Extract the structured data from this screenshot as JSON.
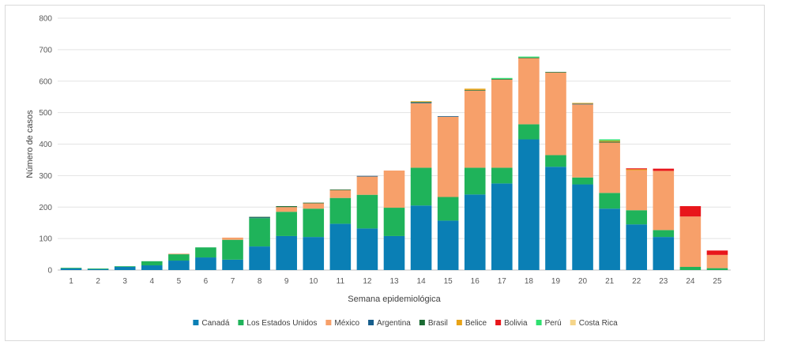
{
  "chart_data": {
    "type": "bar",
    "stacked": true,
    "xlabel": "Semana epidemiológica",
    "ylabel": "Número de casos",
    "ylim": [
      0,
      800
    ],
    "yticks": [
      0,
      100,
      200,
      300,
      400,
      500,
      600,
      700,
      800
    ],
    "grid": true,
    "legend_position": "bottom",
    "categories": [
      "1",
      "2",
      "3",
      "4",
      "5",
      "6",
      "7",
      "8",
      "9",
      "10",
      "11",
      "12",
      "13",
      "14",
      "15",
      "16",
      "17",
      "18",
      "19",
      "20",
      "21",
      "22",
      "23",
      "24",
      "25"
    ],
    "series": [
      {
        "name": "Canadá",
        "color": "#0a7fb5",
        "values": [
          5,
          3,
          10,
          15,
          30,
          40,
          33,
          75,
          108,
          105,
          147,
          132,
          108,
          205,
          157,
          240,
          275,
          415,
          328,
          272,
          195,
          145,
          105,
          0,
          0
        ]
      },
      {
        "name": "Los Estados Unidos",
        "color": "#1fb35a",
        "values": [
          2,
          2,
          2,
          13,
          20,
          32,
          63,
          90,
          77,
          90,
          82,
          107,
          90,
          120,
          75,
          85,
          50,
          48,
          37,
          22,
          50,
          45,
          22,
          10,
          6
        ]
      },
      {
        "name": "México",
        "color": "#f7a06a",
        "values": [
          0,
          0,
          0,
          0,
          2,
          0,
          7,
          0,
          15,
          17,
          25,
          58,
          118,
          205,
          255,
          245,
          280,
          210,
          262,
          232,
          160,
          127,
          188,
          160,
          42
        ]
      },
      {
        "name": "Argentina",
        "color": "#175e8c",
        "values": [
          0,
          0,
          0,
          0,
          0,
          0,
          0,
          2,
          0,
          0,
          0,
          2,
          0,
          2,
          2,
          0,
          0,
          0,
          0,
          2,
          0,
          0,
          0,
          0,
          0
        ]
      },
      {
        "name": "Brasil",
        "color": "#1b6b33",
        "values": [
          0,
          0,
          0,
          0,
          0,
          0,
          0,
          2,
          3,
          2,
          2,
          0,
          0,
          2,
          0,
          2,
          2,
          2,
          2,
          0,
          3,
          0,
          0,
          0,
          0
        ]
      },
      {
        "name": "Belice",
        "color": "#e8a317",
        "values": [
          0,
          0,
          0,
          0,
          0,
          0,
          0,
          0,
          0,
          0,
          0,
          0,
          0,
          2,
          0,
          4,
          0,
          0,
          0,
          2,
          3,
          3,
          0,
          0,
          0
        ]
      },
      {
        "name": "Bolivia",
        "color": "#e8161b",
        "values": [
          0,
          0,
          0,
          0,
          0,
          0,
          0,
          0,
          0,
          0,
          0,
          0,
          0,
          0,
          0,
          0,
          0,
          0,
          0,
          0,
          0,
          3,
          7,
          33,
          14
        ]
      },
      {
        "name": "Perú",
        "color": "#2fe06f",
        "values": [
          0,
          0,
          0,
          0,
          0,
          0,
          0,
          0,
          0,
          0,
          0,
          0,
          0,
          0,
          0,
          0,
          3,
          3,
          0,
          0,
          4,
          0,
          0,
          0,
          0
        ]
      },
      {
        "name": "Costa Rica",
        "color": "#f5d58a",
        "values": [
          0,
          0,
          0,
          0,
          0,
          0,
          0,
          0,
          0,
          0,
          0,
          0,
          0,
          0,
          0,
          0,
          0,
          0,
          0,
          2,
          0,
          0,
          0,
          0,
          0
        ]
      }
    ]
  }
}
